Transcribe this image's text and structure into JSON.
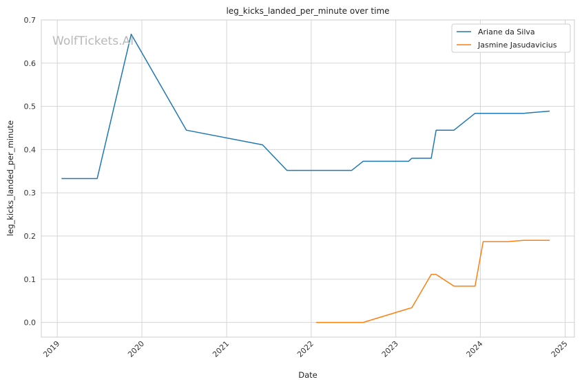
{
  "chart_data": {
    "type": "line",
    "title": "leg_kicks_landed_per_minute over time",
    "xlabel": "Date",
    "ylabel": "leg_kicks_landed_per_minute",
    "watermark": "WolfTickets.AI",
    "x_ticks": [
      "2019",
      "2020",
      "2021",
      "2022",
      "2023",
      "2024",
      "2025"
    ],
    "y_ticks": [
      "0.0",
      "0.1",
      "0.2",
      "0.3",
      "0.4",
      "0.5",
      "0.6",
      "0.7"
    ],
    "xlim": [
      "2018-10-24",
      "2025-02-10"
    ],
    "ylim": [
      -0.034,
      0.7
    ],
    "grid": true,
    "legend": "top-right",
    "series": [
      {
        "name": "Ariane da Silva",
        "color": "#1f77b4",
        "points": [
          [
            "2019-01-19",
            0.333
          ],
          [
            "2019-06-22",
            0.333
          ],
          [
            "2019-11-16",
            0.667
          ],
          [
            "2020-07-11",
            0.445
          ],
          [
            "2021-06-05",
            0.411
          ],
          [
            "2021-09-18",
            0.352
          ],
          [
            "2022-06-25",
            0.352
          ],
          [
            "2022-08-13",
            0.373
          ],
          [
            "2023-02-25",
            0.373
          ],
          [
            "2023-03-11",
            0.38
          ],
          [
            "2023-06-03",
            0.38
          ],
          [
            "2023-06-24",
            0.445
          ],
          [
            "2023-09-09",
            0.445
          ],
          [
            "2023-12-09",
            0.484
          ],
          [
            "2024-07-06",
            0.484
          ],
          [
            "2024-10-26",
            0.489
          ]
        ]
      },
      {
        "name": "Jasmine Jasudavicius",
        "color": "#ff7f0e",
        "points": [
          [
            "2022-01-22",
            0.0
          ],
          [
            "2022-08-13",
            0.0
          ],
          [
            "2023-02-25",
            0.032
          ],
          [
            "2023-03-11",
            0.034
          ],
          [
            "2023-06-03",
            0.111
          ],
          [
            "2023-06-24",
            0.111
          ],
          [
            "2023-09-09",
            0.084
          ],
          [
            "2023-12-09",
            0.084
          ],
          [
            "2024-01-13",
            0.187
          ],
          [
            "2024-04-27",
            0.187
          ],
          [
            "2024-07-06",
            0.19
          ],
          [
            "2024-10-26",
            0.19
          ]
        ]
      }
    ]
  }
}
